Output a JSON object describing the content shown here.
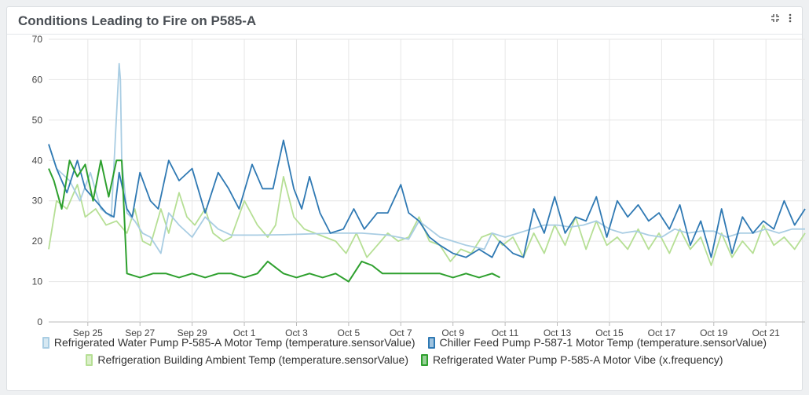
{
  "panel": {
    "title": "Conditions Leading to Fire on P585-A"
  },
  "icons": {
    "expand": "expand-icon",
    "menu": "vertical-dots-icon"
  },
  "chart_data": {
    "type": "line",
    "ylim": [
      0,
      70
    ],
    "yticks": [
      0,
      10,
      20,
      30,
      40,
      50,
      60,
      70
    ],
    "xlim": [
      0,
      29
    ],
    "xtick_labels": [
      {
        "label": "Sep 25",
        "x": 1.5
      },
      {
        "label": "Sep 27",
        "x": 3.5
      },
      {
        "label": "Sep 29",
        "x": 5.5
      },
      {
        "label": "Oct 1",
        "x": 7.5
      },
      {
        "label": "Oct 3",
        "x": 9.5
      },
      {
        "label": "Oct 5",
        "x": 11.5
      },
      {
        "label": "Oct 7",
        "x": 13.5
      },
      {
        "label": "Oct 9",
        "x": 15.5
      },
      {
        "label": "Oct 11",
        "x": 17.5
      },
      {
        "label": "Oct 13",
        "x": 19.5
      },
      {
        "label": "Oct 15",
        "x": 21.5
      },
      {
        "label": "Oct 17",
        "x": 23.5
      },
      {
        "label": "Oct 19",
        "x": 25.5
      },
      {
        "label": "Oct 21",
        "x": 27.5
      }
    ],
    "grid": true,
    "legend_position": "bottom",
    "series": [
      {
        "name": "Refrigerated Water Pump P-585-A Motor Temp (temperature.sensorValue)",
        "color": "#a9cde3",
        "x": [
          0,
          0.3,
          0.8,
          1.2,
          1.6,
          2.0,
          2.4,
          2.7,
          2.75,
          2.8,
          3.0,
          3.3,
          3.6,
          3.9,
          4.3,
          4.6,
          5.0,
          5.5,
          6.0,
          6.5,
          7.0,
          8,
          9,
          10,
          11,
          12,
          13,
          13.8,
          14.2,
          15,
          15.5,
          16,
          16.7,
          17,
          17.5,
          18,
          18.5,
          19,
          19.5,
          20,
          20.5,
          21,
          21.5,
          22,
          22.5,
          23,
          23.5,
          24,
          24.5,
          25,
          25.5,
          26,
          26.5,
          27,
          27.5,
          28,
          28.5,
          29
        ],
        "y": [
          44,
          38,
          35,
          30,
          37,
          28,
          26,
          64,
          60,
          40,
          27,
          25,
          22,
          21,
          17,
          27,
          24,
          21,
          26,
          23,
          21.5,
          21.5,
          21.6,
          21.8,
          22,
          22,
          21.5,
          20.5,
          25,
          21,
          20,
          19,
          18,
          22,
          21,
          22,
          23,
          24,
          24,
          23.5,
          24,
          25,
          23,
          22,
          22.5,
          21.5,
          21,
          23,
          22,
          22.5,
          22.5,
          21,
          22,
          22,
          23,
          22,
          23,
          23
        ]
      },
      {
        "name": "Chiller Feed Pump P-587-1 Motor Temp (temperature.sensorValue)",
        "color": "#2f79b3",
        "x": [
          0,
          0.3,
          0.7,
          1.1,
          1.4,
          1.8,
          2.2,
          2.5,
          2.7,
          3.0,
          3.2,
          3.5,
          3.9,
          4.2,
          4.6,
          5.0,
          5.5,
          6.0,
          6.5,
          6.9,
          7.3,
          7.8,
          8.2,
          8.6,
          9.0,
          9.4,
          9.7,
          10.0,
          10.4,
          10.8,
          11.3,
          11.7,
          12.1,
          12.6,
          13.0,
          13.5,
          13.8,
          14.2,
          14.6,
          15.0,
          15.5,
          16.0,
          16.5,
          17.0,
          17.3,
          17.8,
          18.2,
          18.6,
          19.0,
          19.4,
          19.8,
          20.2,
          20.6,
          21.0,
          21.4,
          21.8,
          22.2,
          22.6,
          23.0,
          23.4,
          23.8,
          24.2,
          24.6,
          25.0,
          25.4,
          25.8,
          26.2,
          26.6,
          27.0,
          27.4,
          27.8,
          28.2,
          28.6,
          29
        ],
        "y": [
          44,
          38,
          32,
          40,
          33,
          30,
          27,
          26,
          37,
          28,
          26,
          37,
          30,
          28,
          40,
          35,
          38,
          27,
          37,
          33,
          28,
          39,
          33,
          33,
          45,
          33,
          28,
          36,
          27,
          22,
          23,
          28,
          23,
          27,
          27,
          34,
          27,
          25,
          21,
          19,
          17,
          16,
          18,
          16,
          20,
          17,
          16,
          28,
          22,
          31,
          22,
          26,
          25,
          31,
          21,
          30,
          26,
          29,
          25,
          27,
          23,
          29,
          19,
          25,
          16,
          28,
          17,
          26,
          22,
          25,
          23,
          30,
          24,
          28
        ]
      },
      {
        "name": "Refrigeration Building Ambient Temp (temperature.sensorValue)",
        "color": "#b6df95",
        "x": [
          0,
          0.3,
          0.7,
          1.1,
          1.4,
          1.8,
          2.2,
          2.6,
          3.0,
          3.3,
          3.6,
          3.9,
          4.3,
          4.6,
          5.0,
          5.3,
          5.6,
          6.0,
          6.3,
          6.7,
          7.0,
          7.5,
          8.0,
          8.4,
          8.7,
          9.0,
          9.4,
          9.8,
          10.2,
          10.6,
          11.0,
          11.4,
          11.8,
          12.2,
          12.6,
          13.0,
          13.4,
          13.8,
          14.2,
          14.6,
          15.0,
          15.4,
          15.8,
          16.2,
          16.6,
          17.0,
          17.4,
          17.8,
          18.2,
          18.6,
          19.0,
          19.4,
          19.8,
          20.2,
          20.6,
          21.0,
          21.4,
          21.8,
          22.2,
          22.6,
          23.0,
          23.4,
          23.8,
          24.2,
          24.6,
          25.0,
          25.4,
          25.8,
          26.2,
          26.6,
          27.0,
          27.4,
          27.8,
          28.2,
          28.6,
          29
        ],
        "y": [
          18,
          30,
          28,
          34,
          26,
          28,
          24,
          25,
          22,
          28,
          20,
          19,
          28,
          22,
          32,
          26,
          24,
          28,
          22,
          20,
          21,
          30,
          24,
          21,
          24,
          36,
          26,
          23,
          22,
          21,
          20,
          17,
          22,
          16,
          19,
          22,
          20,
          21,
          26,
          20,
          19,
          15,
          18,
          17,
          21,
          22,
          19,
          21,
          16,
          22,
          17,
          24,
          19,
          26,
          18,
          25,
          19,
          21,
          18,
          23,
          18,
          22,
          17,
          23,
          18,
          21,
          14,
          22,
          16,
          20,
          17,
          24,
          19,
          21,
          18,
          22
        ]
      },
      {
        "name": "Refrigerated Water Pump P-585-A Motor Vibe (x.frequency)",
        "color": "#2ea02e",
        "x": [
          0,
          0.2,
          0.5,
          0.8,
          1.1,
          1.4,
          1.7,
          2.0,
          2.3,
          2.6,
          2.8,
          3.0,
          3.5,
          4.0,
          4.5,
          5.0,
          5.5,
          6.0,
          6.5,
          7.0,
          7.5,
          8.0,
          8.4,
          9.0,
          9.5,
          10.0,
          10.5,
          11.0,
          11.5,
          12.0,
          12.4,
          12.8,
          13.2,
          13.6,
          14.0,
          14.5,
          15.0,
          15.5,
          16.0,
          16.5,
          17.0,
          17.3
        ],
        "y": [
          38,
          35,
          28,
          40,
          36,
          39,
          30,
          40,
          31,
          40,
          40,
          12,
          11,
          12,
          12,
          11,
          12,
          11,
          12,
          12,
          11,
          12,
          15,
          12,
          11,
          12,
          11,
          12,
          10,
          15,
          14,
          12,
          12,
          12,
          12,
          12,
          12,
          11,
          12,
          11,
          12,
          11
        ]
      }
    ]
  }
}
